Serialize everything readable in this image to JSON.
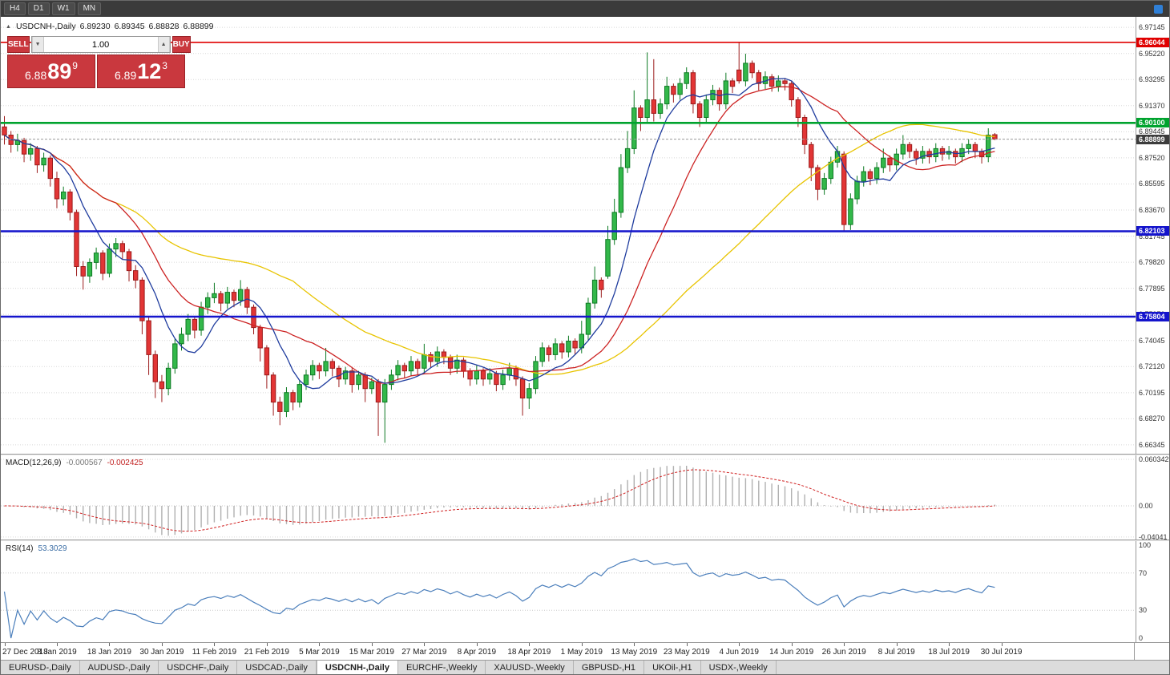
{
  "toolbar": {
    "timeframes": [
      "H4",
      "D1",
      "W1",
      "MN"
    ]
  },
  "chart": {
    "panel_toggle_icon": "▲",
    "title": {
      "symbol": "USDCNH-,Daily",
      "open": "6.89230",
      "high": "6.89345",
      "low": "6.88828",
      "close": "6.88899"
    }
  },
  "trade_panel": {
    "sell_label": "SELL",
    "buy_label": "BUY",
    "volume": "1.00",
    "volume_down_icon": "▼",
    "volume_up_icon": "▲",
    "sell_price": {
      "base": "6.88",
      "big": "89",
      "frac": "9"
    },
    "buy_price": {
      "base": "6.89",
      "big": "12",
      "frac": "3"
    }
  },
  "bottom_tabs": {
    "active": "USDCNH-,Daily",
    "items": [
      "EURUSD-,Daily",
      "AUDUSD-,Daily",
      "USDCHF-,Daily",
      "USDCAD-,Daily",
      "USDCNH-,Daily",
      "EURCHF-,Weekly",
      "XAUUSD-,Weekly",
      "GBPUSD-,H1",
      "UKOil-,H1",
      "USDX-,Weekly"
    ]
  },
  "chart_data": {
    "type": "candlestick",
    "symbol": "USDCNH",
    "timeframe": "Daily",
    "ylim": [
      6.6569,
      6.9745
    ],
    "price_ticks": [
      6.97145,
      6.9522,
      6.93295,
      6.9137,
      6.89445,
      6.8752,
      6.85595,
      6.8367,
      6.81745,
      6.7982,
      6.77895,
      6.7597,
      6.74045,
      6.7212,
      6.70195,
      6.6827,
      6.66345
    ],
    "colors": {
      "up_fill": "#33b84a",
      "up_stroke": "#0d7a23",
      "down_fill": "#e23535",
      "down_stroke": "#9c1c1c",
      "grid": "#d8d8d8"
    },
    "levels": [
      {
        "name": "resistance-red-line",
        "value": 6.96044,
        "label": "6.96044",
        "color": "#e00000",
        "width": 1.6
      },
      {
        "name": "support-green-line",
        "value": 6.901,
        "label": "6.90100",
        "color": "#00a32e",
        "width": 2.6
      },
      {
        "name": "support-blue-line-upper",
        "value": 6.82103,
        "label": "6.82103",
        "color": "#1414cc",
        "width": 2.4
      },
      {
        "name": "support-blue-line-lower",
        "value": 6.75804,
        "label": "6.75804",
        "color": "#1414cc",
        "width": 2.4
      }
    ],
    "current_price": {
      "value": 6.88899,
      "label": "6.88899",
      "badge_color": "#3c3c3c"
    },
    "moving_averages": [
      {
        "name": "slow-ma-yellow",
        "period": 45,
        "color": "#e8c400"
      },
      {
        "name": "mid-ma-red",
        "period": 18,
        "color": "#cc2222"
      },
      {
        "name": "fast-ma-blue",
        "period": 8,
        "color": "#1f3c9e"
      }
    ],
    "time_ticks": [
      {
        "i": 0,
        "label": "27 Dec 2018"
      },
      {
        "i": 8,
        "label": "8 Jan 2019"
      },
      {
        "i": 16,
        "label": "18 Jan 2019"
      },
      {
        "i": 24,
        "label": "30 Jan 2019"
      },
      {
        "i": 32,
        "label": "11 Feb 2019"
      },
      {
        "i": 40,
        "label": "21 Feb 2019"
      },
      {
        "i": 48,
        "label": "5 Mar 2019"
      },
      {
        "i": 56,
        "label": "15 Mar 2019"
      },
      {
        "i": 64,
        "label": "27 Mar 2019"
      },
      {
        "i": 72,
        "label": "8 Apr 2019"
      },
      {
        "i": 80,
        "label": "18 Apr 2019"
      },
      {
        "i": 88,
        "label": "1 May 2019"
      },
      {
        "i": 96,
        "label": "13 May 2019"
      },
      {
        "i": 104,
        "label": "23 May 2019"
      },
      {
        "i": 112,
        "label": "4 Jun 2019"
      },
      {
        "i": 120,
        "label": "14 Jun 2019"
      },
      {
        "i": 128,
        "label": "26 Jun 2019"
      },
      {
        "i": 136,
        "label": "8 Jul 2019"
      },
      {
        "i": 144,
        "label": "18 Jul 2019"
      },
      {
        "i": 152,
        "label": "30 Jul 2019"
      }
    ],
    "candles": [
      [
        6.898,
        6.906,
        6.885,
        6.892
      ],
      [
        6.892,
        6.895,
        6.879,
        6.885
      ],
      [
        6.885,
        6.893,
        6.88,
        6.888
      ],
      [
        6.888,
        6.89,
        6.872,
        6.878
      ],
      [
        6.878,
        6.886,
        6.873,
        6.882
      ],
      [
        6.882,
        6.884,
        6.864,
        6.87
      ],
      [
        6.87,
        6.879,
        6.865,
        6.875
      ],
      [
        6.875,
        6.877,
        6.854,
        6.86
      ],
      [
        6.86,
        6.865,
        6.838,
        6.845
      ],
      [
        6.845,
        6.854,
        6.84,
        6.85
      ],
      [
        6.85,
        6.852,
        6.829,
        6.835
      ],
      [
        6.835,
        6.837,
        6.788,
        6.795
      ],
      [
        6.795,
        6.799,
        6.778,
        6.788
      ],
      [
        6.788,
        6.801,
        6.783,
        6.798
      ],
      [
        6.798,
        6.809,
        6.793,
        6.805
      ],
      [
        6.805,
        6.807,
        6.785,
        6.79
      ],
      [
        6.79,
        6.812,
        6.787,
        6.808
      ],
      [
        6.808,
        6.816,
        6.802,
        6.812
      ],
      [
        6.812,
        6.814,
        6.8,
        6.806
      ],
      [
        6.806,
        6.808,
        6.784,
        6.792
      ],
      [
        6.792,
        6.796,
        6.779,
        6.785
      ],
      [
        6.785,
        6.787,
        6.745,
        6.755
      ],
      [
        6.755,
        6.758,
        6.715,
        6.73
      ],
      [
        6.73,
        6.733,
        6.698,
        6.71
      ],
      [
        6.71,
        6.715,
        6.695,
        6.705
      ],
      [
        6.705,
        6.724,
        6.7,
        6.72
      ],
      [
        6.72,
        6.742,
        6.716,
        6.738
      ],
      [
        6.738,
        6.75,
        6.733,
        6.745
      ],
      [
        6.745,
        6.76,
        6.74,
        6.756
      ],
      [
        6.756,
        6.758,
        6.742,
        6.748
      ],
      [
        6.748,
        6.769,
        6.744,
        6.765
      ],
      [
        6.765,
        6.776,
        6.76,
        6.772
      ],
      [
        6.772,
        6.783,
        6.768,
        6.775
      ],
      [
        6.775,
        6.777,
        6.762,
        6.768
      ],
      [
        6.768,
        6.78,
        6.764,
        6.776
      ],
      [
        6.776,
        6.778,
        6.765,
        6.77
      ],
      [
        6.77,
        6.785,
        6.766,
        6.778
      ],
      [
        6.778,
        6.78,
        6.76,
        6.765
      ],
      [
        6.765,
        6.767,
        6.745,
        6.75
      ],
      [
        6.75,
        6.752,
        6.725,
        6.735
      ],
      [
        6.735,
        6.737,
        6.705,
        6.715
      ],
      [
        6.715,
        6.717,
        6.685,
        6.695
      ],
      [
        6.695,
        6.699,
        6.678,
        6.688
      ],
      [
        6.688,
        6.706,
        6.684,
        6.702
      ],
      [
        6.702,
        6.704,
        6.689,
        6.695
      ],
      [
        6.695,
        6.711,
        6.691,
        6.708
      ],
      [
        6.708,
        6.719,
        6.704,
        6.715
      ],
      [
        6.715,
        6.726,
        6.711,
        6.722
      ],
      [
        6.722,
        6.724,
        6.712,
        6.718
      ],
      [
        6.718,
        6.735,
        6.714,
        6.725
      ],
      [
        6.725,
        6.727,
        6.714,
        6.72
      ],
      [
        6.72,
        6.722,
        6.706,
        6.712
      ],
      [
        6.712,
        6.721,
        6.708,
        6.718
      ],
      [
        6.718,
        6.72,
        6.702,
        6.708
      ],
      [
        6.708,
        6.718,
        6.704,
        6.715
      ],
      [
        6.715,
        6.717,
        6.695,
        6.705
      ],
      [
        6.705,
        6.713,
        6.701,
        6.71
      ],
      [
        6.71,
        6.712,
        6.67,
        6.695
      ],
      [
        6.695,
        6.712,
        6.665,
        6.708
      ],
      [
        6.708,
        6.719,
        6.704,
        6.715
      ],
      [
        6.715,
        6.726,
        6.711,
        6.722
      ],
      [
        6.722,
        6.724,
        6.713,
        6.718
      ],
      [
        6.718,
        6.729,
        6.714,
        6.725
      ],
      [
        6.725,
        6.727,
        6.715,
        6.72
      ],
      [
        6.72,
        6.738,
        6.716,
        6.73
      ],
      [
        6.73,
        6.732,
        6.72,
        6.725
      ],
      [
        6.725,
        6.736,
        6.721,
        6.732
      ],
      [
        6.732,
        6.734,
        6.723,
        6.728
      ],
      [
        6.728,
        6.73,
        6.715,
        6.72
      ],
      [
        6.72,
        6.73,
        6.716,
        6.726
      ],
      [
        6.726,
        6.728,
        6.713,
        6.718
      ],
      [
        6.718,
        6.72,
        6.707,
        6.712
      ],
      [
        6.712,
        6.722,
        6.708,
        6.718
      ],
      [
        6.718,
        6.72,
        6.707,
        6.712
      ],
      [
        6.712,
        6.72,
        6.708,
        6.716
      ],
      [
        6.716,
        6.718,
        6.703,
        6.708
      ],
      [
        6.708,
        6.719,
        6.704,
        6.715
      ],
      [
        6.715,
        6.724,
        6.711,
        6.72
      ],
      [
        6.72,
        6.722,
        6.707,
        6.712
      ],
      [
        6.712,
        6.714,
        6.685,
        6.698
      ],
      [
        6.698,
        6.709,
        6.69,
        6.705
      ],
      [
        6.705,
        6.729,
        6.701,
        6.725
      ],
      [
        6.725,
        6.739,
        6.721,
        6.735
      ],
      [
        6.735,
        6.737,
        6.725,
        6.73
      ],
      [
        6.73,
        6.742,
        6.726,
        6.738
      ],
      [
        6.738,
        6.74,
        6.727,
        6.732
      ],
      [
        6.732,
        6.744,
        6.728,
        6.74
      ],
      [
        6.74,
        6.742,
        6.73,
        6.735
      ],
      [
        6.735,
        6.755,
        6.731,
        6.745
      ],
      [
        6.745,
        6.772,
        6.741,
        6.768
      ],
      [
        6.768,
        6.795,
        6.764,
        6.785
      ],
      [
        6.785,
        6.787,
        6.772,
        6.778
      ],
      [
        6.788,
        6.825,
        6.786,
        6.815
      ],
      [
        6.815,
        6.845,
        6.811,
        6.835
      ],
      [
        6.835,
        6.878,
        6.831,
        6.868
      ],
      [
        6.868,
        6.895,
        6.864,
        6.882
      ],
      [
        6.882,
        6.925,
        6.878,
        6.912
      ],
      [
        6.912,
        6.914,
        6.895,
        6.905
      ],
      [
        6.905,
        6.953,
        6.901,
        6.918
      ],
      [
        6.918,
        6.948,
        6.902,
        6.908
      ],
      [
        6.908,
        6.919,
        6.904,
        6.915
      ],
      [
        6.915,
        6.935,
        6.911,
        6.928
      ],
      [
        6.928,
        6.93,
        6.916,
        6.922
      ],
      [
        6.922,
        6.934,
        6.918,
        6.93
      ],
      [
        6.93,
        6.942,
        6.926,
        6.938
      ],
      [
        6.938,
        6.94,
        6.908,
        6.915
      ],
      [
        6.915,
        6.917,
        6.898,
        6.905
      ],
      [
        6.905,
        6.922,
        6.901,
        6.918
      ],
      [
        6.918,
        6.929,
        6.914,
        6.925
      ],
      [
        6.925,
        6.927,
        6.91,
        6.915
      ],
      [
        6.915,
        6.938,
        6.911,
        6.932
      ],
      [
        6.932,
        6.934,
        6.923,
        6.928
      ],
      [
        6.94,
        6.9604,
        6.93,
        6.932
      ],
      [
        6.932,
        6.952,
        6.928,
        6.945
      ],
      [
        6.945,
        6.947,
        6.934,
        6.938
      ],
      [
        6.938,
        6.94,
        6.925,
        6.93
      ],
      [
        6.93,
        6.939,
        6.926,
        6.935
      ],
      [
        6.935,
        6.937,
        6.924,
        6.928
      ],
      [
        6.928,
        6.936,
        6.924,
        6.932
      ],
      [
        6.932,
        6.934,
        6.925,
        6.93
      ],
      [
        6.93,
        6.932,
        6.913,
        6.918
      ],
      [
        6.918,
        6.92,
        6.898,
        6.905
      ],
      [
        6.905,
        6.907,
        6.878,
        6.885
      ],
      [
        6.885,
        6.887,
        6.858,
        6.868
      ],
      [
        6.868,
        6.87,
        6.844,
        6.852
      ],
      [
        6.852,
        6.864,
        6.848,
        6.86
      ],
      [
        6.86,
        6.876,
        6.856,
        6.872
      ],
      [
        6.872,
        6.884,
        6.868,
        6.88
      ],
      [
        6.878,
        6.88,
        6.821,
        6.826
      ],
      [
        6.826,
        6.849,
        6.822,
        6.845
      ],
      [
        6.845,
        6.862,
        6.841,
        6.858
      ],
      [
        6.858,
        6.869,
        6.854,
        6.865
      ],
      [
        6.865,
        6.867,
        6.855,
        6.86
      ],
      [
        6.86,
        6.872,
        6.856,
        6.868
      ],
      [
        6.868,
        6.882,
        6.864,
        6.875
      ],
      [
        6.875,
        6.877,
        6.865,
        6.87
      ],
      [
        6.87,
        6.882,
        6.866,
        6.878
      ],
      [
        6.878,
        6.892,
        6.874,
        6.885
      ],
      [
        6.885,
        6.887,
        6.875,
        6.88
      ],
      [
        6.88,
        6.882,
        6.87,
        6.875
      ],
      [
        6.875,
        6.884,
        6.871,
        6.88
      ],
      [
        6.88,
        6.882,
        6.871,
        6.876
      ],
      [
        6.876,
        6.886,
        6.872,
        6.882
      ],
      [
        6.882,
        6.884,
        6.873,
        6.878
      ],
      [
        6.878,
        6.884,
        6.874,
        6.88
      ],
      [
        6.88,
        6.882,
        6.871,
        6.876
      ],
      [
        6.876,
        6.886,
        6.872,
        6.882
      ],
      [
        6.882,
        6.889,
        6.878,
        6.885
      ],
      [
        6.885,
        6.887,
        6.875,
        6.88
      ],
      [
        6.88,
        6.882,
        6.871,
        6.876
      ],
      [
        6.876,
        6.897,
        6.872,
        6.892
      ],
      [
        6.8923,
        6.8935,
        6.8883,
        6.889
      ]
    ],
    "macd": {
      "label": "MACD(12,26,9)",
      "value_macd": "-0.000567",
      "value_signal": "-0.002425",
      "fast": 12,
      "slow": 26,
      "signal_period": 9,
      "scale": [
        {
          "value": 0.060342,
          "label": "0.060342"
        },
        {
          "value": 0,
          "label": "0.00"
        },
        {
          "value": -0.04041,
          "label": "-0.04041"
        }
      ],
      "histogram_color": "#b0b0b0",
      "signal_color": "#d02020"
    },
    "rsi": {
      "label": "RSI(14)",
      "value": "53.3029",
      "period": 14,
      "color": "#4a7ebb",
      "levels": [
        {
          "value": 100,
          "label": "100",
          "grid": false
        },
        {
          "value": 70,
          "label": "70",
          "grid": true
        },
        {
          "value": 30,
          "label": "30",
          "grid": true
        },
        {
          "value": 0,
          "label": "0",
          "grid": false
        }
      ]
    }
  }
}
